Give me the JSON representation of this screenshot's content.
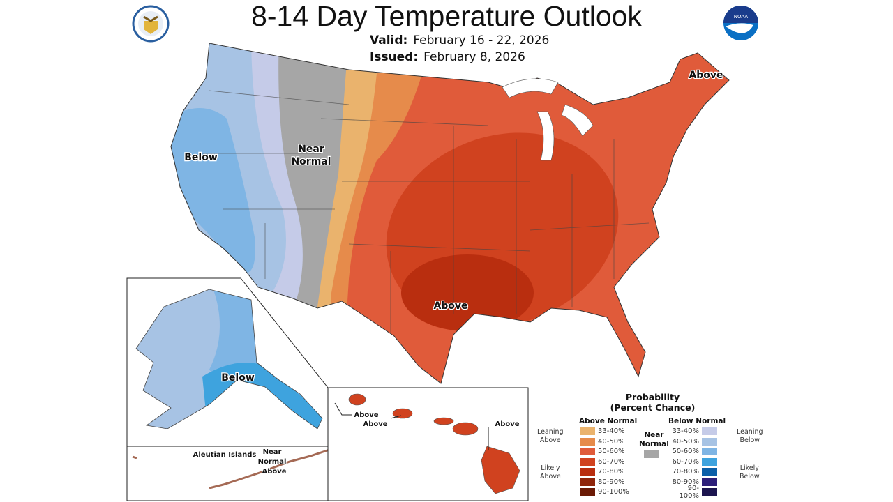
{
  "header": {
    "title": "8-14 Day Temperature Outlook",
    "valid_label": "Valid:",
    "valid_value": "February 16 - 22, 2026",
    "issued_label": "Issued:",
    "issued_value": "February 8, 2026",
    "logos": [
      "department-of-commerce-seal",
      "noaa-logo"
    ]
  },
  "map_labels": {
    "west": "Below",
    "mountain_near": "Near",
    "mountain_normal": "Normal",
    "northeast": "Above",
    "south": "Above",
    "alaska": "Below",
    "aleutian_title": "Aleutian Islands",
    "aleutian_near": "Near",
    "aleutian_normal": "Normal",
    "aleutian_above": "Above",
    "hawaii_above_1": "Above",
    "hawaii_above_2": "Above",
    "hawaii_above_3": "Above"
  },
  "legend": {
    "title_1": "Probability",
    "title_2": "(Percent Chance)",
    "above_header": "Above Normal",
    "below_header": "Below Normal",
    "near_1": "Near",
    "near_2": "Normal",
    "near_color": "#a6a6a6",
    "leaning_above": [
      "Leaning",
      "Above"
    ],
    "likely_above": [
      "Likely",
      "Above"
    ],
    "leaning_below": [
      "Leaning",
      "Below"
    ],
    "likely_below": [
      "Likely",
      "Below"
    ],
    "above": [
      {
        "range": "33-40%",
        "color": "#eab36d"
      },
      {
        "range": "40-50%",
        "color": "#e68b4b"
      },
      {
        "range": "50-60%",
        "color": "#e05b3a"
      },
      {
        "range": "60-70%",
        "color": "#d0421f"
      },
      {
        "range": "70-80%",
        "color": "#b92e0f"
      },
      {
        "range": "80-90%",
        "color": "#8f250a"
      },
      {
        "range": "90-100%",
        "color": "#6b1a05"
      }
    ],
    "below": [
      {
        "range": "33-40%",
        "color": "#c5cbe8"
      },
      {
        "range": "40-50%",
        "color": "#a7c3e4"
      },
      {
        "range": "50-60%",
        "color": "#7fb5e4"
      },
      {
        "range": "60-70%",
        "color": "#3ea3de"
      },
      {
        "range": "70-80%",
        "color": "#0b5fa8"
      },
      {
        "range": "80-90%",
        "color": "#2d1f7a"
      },
      {
        "range": "90-100%",
        "color": "#1c154f"
      }
    ]
  }
}
